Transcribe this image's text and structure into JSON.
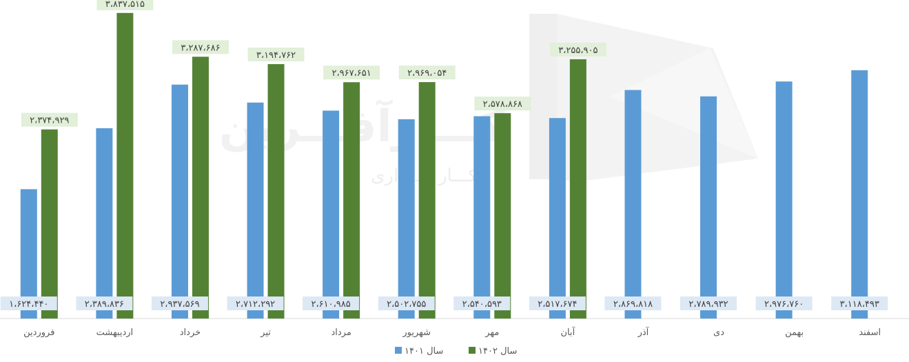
{
  "chart_data": {
    "type": "bar",
    "title": "",
    "xlabel": "",
    "ylabel": "",
    "ylim": [
      0,
      4000000
    ],
    "grid": false,
    "legend_position": "bottom",
    "categories": [
      "فروردین",
      "اردیبهشت",
      "خرداد",
      "تیر",
      "مرداد",
      "شهریور",
      "مهر",
      "آبان",
      "آذر",
      "دی",
      "بهمن",
      "اسفند"
    ],
    "series": [
      {
        "name": "سال ۱۴۰۱",
        "color": "#5b9bd5",
        "values": [
          1624440,
          2389836,
          2937569,
          2712292,
          2610985,
          2502755,
          2540593,
          2517674,
          2869818,
          2789932,
          2976760,
          3118493
        ],
        "labels": [
          "۱،۶۲۴،۴۴۰",
          "۲،۳۸۹،۸۳۶",
          "۲،۹۳۷،۵۶۹",
          "۲،۷۱۲،۲۹۲",
          "۲،۶۱۰،۹۸۵",
          "۲،۵۰۲،۷۵۵",
          "۲،۵۴۰،۵۹۳",
          "۲،۵۱۷،۶۷۴",
          "۲،۸۶۹،۸۱۸",
          "۲،۷۸۹،۹۳۲",
          "۲،۹۷۶،۷۶۰",
          "۳،۱۱۸،۴۹۳"
        ]
      },
      {
        "name": "سال ۱۴۰۲",
        "color": "#548235",
        "values": [
          2374929,
          3837515,
          3287686,
          3194762,
          2967651,
          2969054,
          2578868,
          3255905,
          null,
          null,
          null,
          null
        ],
        "labels": [
          "۲،۳۷۴،۹۲۹",
          "۳،۸۳۷،۵۱۵",
          "۳،۲۸۷،۶۸۶",
          "۳،۱۹۴،۷۶۲",
          "۲،۹۶۷،۶۵۱",
          "۲،۹۶۹،۰۵۴",
          "۲،۵۷۸،۸۶۸",
          "۳،۲۵۵،۹۰۵",
          null,
          null,
          null,
          null
        ]
      }
    ]
  },
  "watermark": {
    "logo_text": "کـــارآفـــرین",
    "sub_text": "کـــار گـــزاری"
  },
  "colors": {
    "label_bg_1401": "#dde8f5",
    "label_bg_1402": "#e2efd9",
    "axis": "#d9d9d9",
    "text": "#595959"
  }
}
